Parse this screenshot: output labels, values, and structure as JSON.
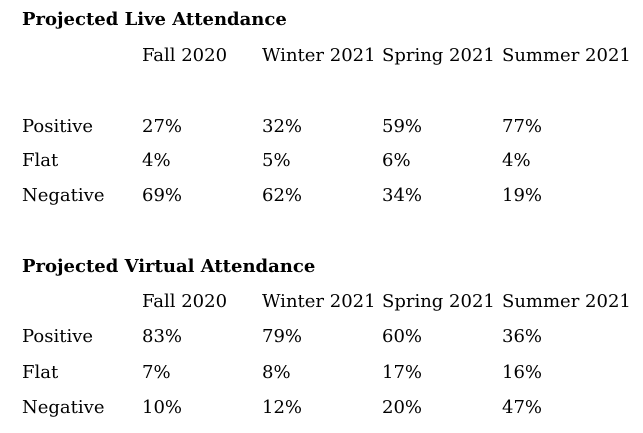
{
  "tables": [
    {
      "title": "Projected Live Attendance",
      "columns": [
        "Fall 2020",
        "Winter 2021",
        "Spring 2021",
        "Summer 2021"
      ],
      "rows": [
        {
          "label": "Positive",
          "values": [
            "27%",
            "32%",
            "59%",
            "77%"
          ]
        },
        {
          "label": "Flat",
          "values": [
            "4%",
            "5%",
            "6%",
            "4%"
          ]
        },
        {
          "label": "Negative",
          "values": [
            "69%",
            "62%",
            "34%",
            "19%"
          ]
        }
      ]
    },
    {
      "title": "Projected Virtual Attendance",
      "columns": [
        "Fall 2020",
        "Winter 2021",
        "Spring 2021",
        "Summer 2021"
      ],
      "rows": [
        {
          "label": "Positive",
          "values": [
            "83%",
            "79%",
            "60%",
            "36%"
          ]
        },
        {
          "label": "Flat",
          "values": [
            "7%",
            "8%",
            "17%",
            "16%"
          ]
        },
        {
          "label": "Negative",
          "values": [
            "10%",
            "12%",
            "20%",
            "47%"
          ]
        }
      ]
    }
  ]
}
